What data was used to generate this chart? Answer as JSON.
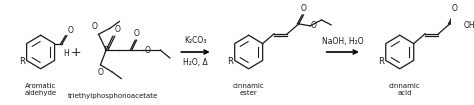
{
  "background_color": "#ffffff",
  "fig_width": 4.74,
  "fig_height": 1.05,
  "dpi": 100,
  "label1": "Aromatic\naldehyde",
  "label2": "triethylphosphonoacetate",
  "label3": "cinnamic\nester",
  "label4": "cinnamic\nacid",
  "reagent1": "K₂CO₃",
  "reagent2": "H₂O, Δ",
  "reagent3": "NaOH, H₂O",
  "text_color": "#1a1a1a",
  "struct_color": "#1a1a1a",
  "font_size_label": 5.0,
  "font_size_reagent": 5.5,
  "font_size_atom": 6.0,
  "line_width": 0.9
}
